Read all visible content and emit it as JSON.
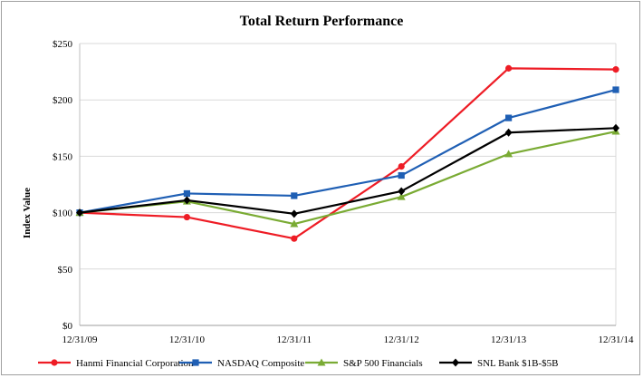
{
  "chart_data": {
    "type": "line",
    "title": "Total Return Performance",
    "xlabel": "",
    "ylabel": "Index Value",
    "categories": [
      "12/31/09",
      "12/31/10",
      "12/31/11",
      "12/31/12",
      "12/31/13",
      "12/31/14"
    ],
    "y_ticks": [
      "$0",
      "$50",
      "$100",
      "$150",
      "$200",
      "$250"
    ],
    "ylim": [
      0,
      250
    ],
    "grid": true,
    "legend_position": "bottom",
    "series": [
      {
        "name": "Hanmi Financial Corporation",
        "color": "#ee1c25",
        "marker": "circle",
        "values": [
          100,
          96,
          77,
          141,
          228,
          227
        ]
      },
      {
        "name": "NASDAQ Composite",
        "color": "#1f5fb4",
        "marker": "square",
        "values": [
          100,
          117,
          115,
          133,
          184,
          209
        ]
      },
      {
        "name": "S&P 500 Financials",
        "color": "#7aab34",
        "marker": "triangle",
        "values": [
          100,
          110,
          90,
          114,
          152,
          172
        ]
      },
      {
        "name": "SNL Bank $1B-$5B",
        "color": "#000000",
        "marker": "diamond",
        "values": [
          100,
          111,
          99,
          119,
          171,
          175
        ]
      }
    ]
  }
}
